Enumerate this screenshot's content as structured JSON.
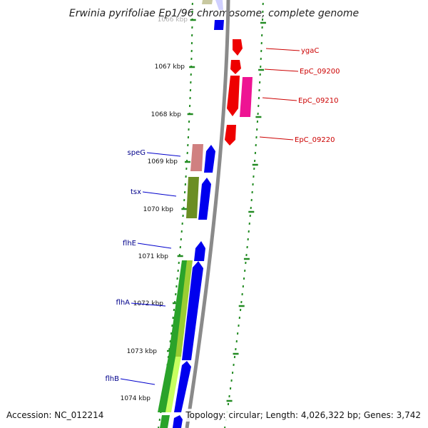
{
  "title": "Erwinia pyrifoliae Ep1/96 chromosome, complete genome",
  "footer": {
    "accession": "Accession: NC_012214",
    "summary": "Topology: circular; Length: 4,026,322 bp; Genes: 3,742"
  },
  "colors": {
    "backbone": "#8a8a8a",
    "tick": "#228b22",
    "left_label": "#00008b",
    "right_label": "#cc0000",
    "leader_left": "#0000cc",
    "leader_right": "#cc0000"
  },
  "scale_labels": [
    "1066 kbp",
    "1067 kbp",
    "1068 kbp",
    "1069 kbp",
    "1070 kbp",
    "1071 kbp",
    "1072 kbp",
    "1073 kbp",
    "1074 kbp"
  ],
  "left_genes": [
    {
      "label": "speG"
    },
    {
      "label": "tsx"
    },
    {
      "label": "flhE"
    },
    {
      "label": "flhA"
    },
    {
      "label": "flhB"
    }
  ],
  "right_genes": [
    {
      "label": "ygaC"
    },
    {
      "label": "EpC_09200"
    },
    {
      "label": "EpC_09210"
    },
    {
      "label": "EpC_09220"
    }
  ]
}
